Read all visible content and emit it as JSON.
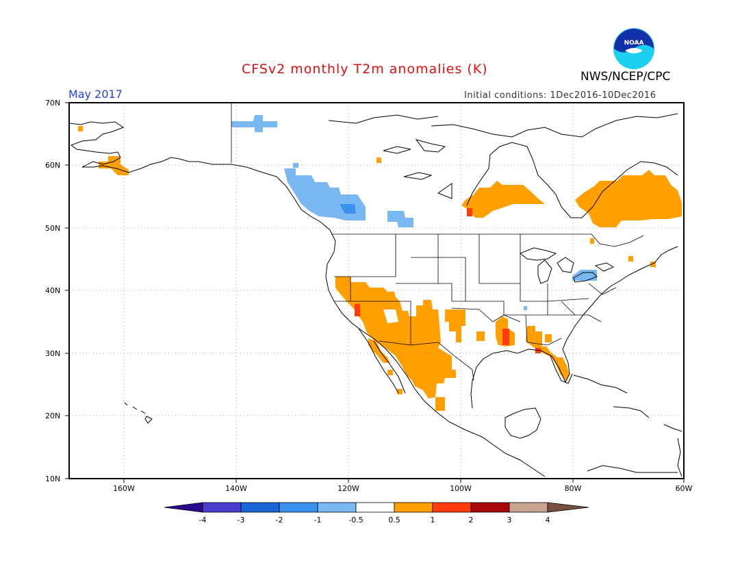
{
  "header": {
    "title": "CFSv2 monthly T2m anomalies (K)",
    "month": "May 2017",
    "agency": "NWS/NCEP/CPC",
    "initial_conditions": "Initial conditions: 1Dec2016-10Dec2016",
    "logo_text": "NOAA"
  },
  "map": {
    "lon_range": [
      -172,
      -60
    ],
    "lat_range": [
      10,
      70
    ],
    "lat_labels": [
      "70N",
      "60N",
      "50N",
      "40N",
      "30N",
      "20N",
      "10N"
    ],
    "lon_labels": [
      "160W",
      "140W",
      "120W",
      "100W",
      "80W",
      "60W"
    ]
  },
  "colorbar": {
    "labels": [
      "-4",
      "-3",
      "-2",
      "-1",
      "-0.5",
      "0.5",
      "1",
      "2",
      "3",
      "4"
    ],
    "colors": [
      "#2a0a8c",
      "#4a3ed0",
      "#1a66d6",
      "#3a92ee",
      "#7ab8f4",
      "#ffffff",
      "#ffa000",
      "#ff3c0a",
      "#a80808",
      "#c9a290",
      "#785040"
    ]
  },
  "anomaly_colors": {
    "warm1": "#ffa000",
    "warm2": "#ff3c0a",
    "cool1": "#7ab8f4",
    "cool2": "#3a92ee"
  }
}
